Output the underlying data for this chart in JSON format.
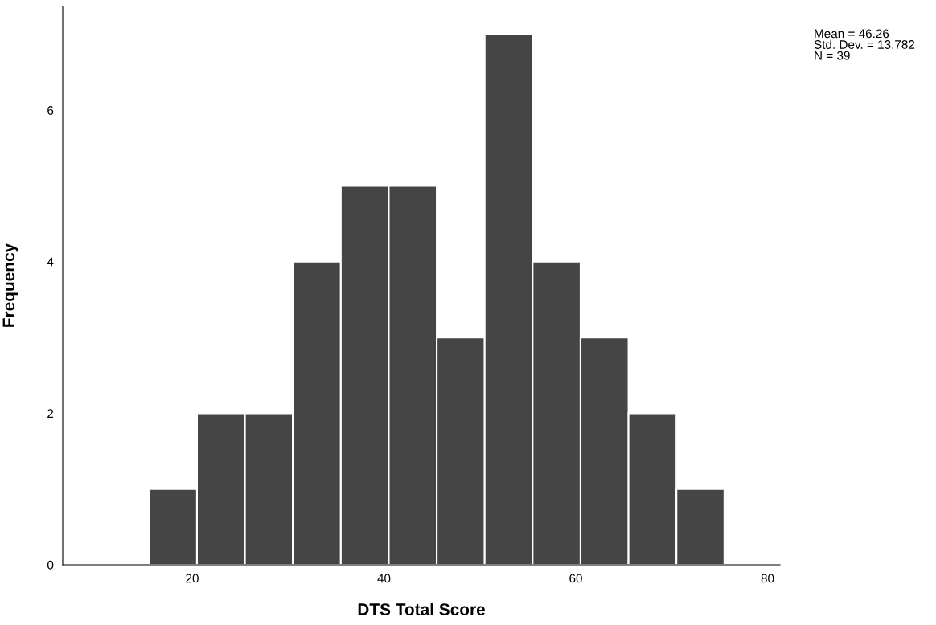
{
  "chart_data": {
    "type": "histogram",
    "xlabel": "DTS Total Score",
    "ylabel": "Frequency",
    "bins": [
      15.5,
      20.5,
      25.5,
      30.5,
      35.5,
      40.5,
      45.5,
      50.5,
      55.5,
      60.5,
      65.5,
      70.5,
      75.5
    ],
    "values": [
      1,
      2,
      2,
      4,
      5,
      5,
      3,
      7,
      4,
      3,
      2,
      1
    ],
    "color": "#454545",
    "xlim": [
      6.5,
      81.3
    ],
    "xticks": [
      20,
      40,
      60,
      80
    ],
    "ylim": [
      0,
      7.37
    ],
    "yticks": [
      0,
      2,
      4,
      6
    ],
    "grid": false,
    "annotations": [
      "Mean = 46.26\nStd. Dev. = 13.782\nN = 39"
    ]
  }
}
